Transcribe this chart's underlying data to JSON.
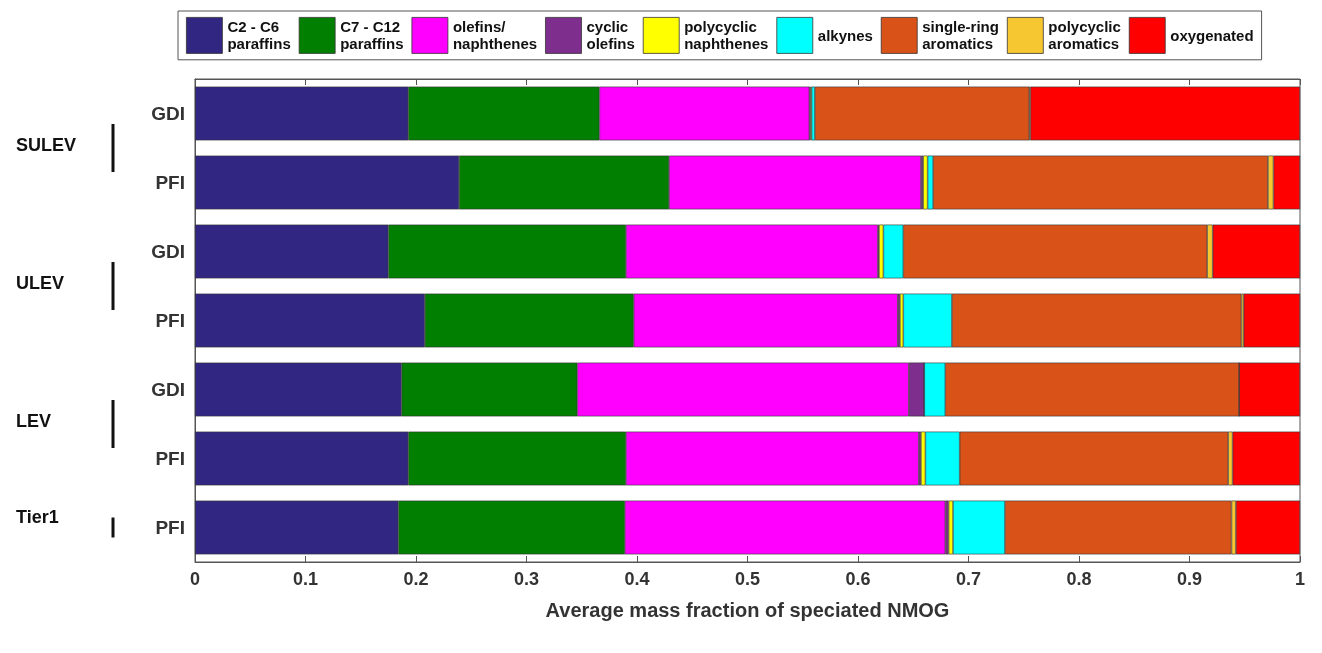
{
  "chart_data": {
    "type": "bar",
    "orientation": "horizontal",
    "stacked": true,
    "xlabel": "Average mass fraction of speciated NMOG",
    "categories": [
      "GDI",
      "PFI",
      "GDI",
      "PFI",
      "GDI",
      "PFI",
      "PFI"
    ],
    "annotations": [
      "SULEV",
      "ULEV",
      "LEV",
      "Tier1"
    ],
    "xlim": [
      0,
      1
    ],
    "xticks": [
      0,
      0.1,
      0.2,
      0.3,
      0.4,
      0.5,
      0.6,
      0.7,
      0.8,
      0.9,
      1
    ],
    "grid": false,
    "legend": "top",
    "series": [
      {
        "name": "C2 - C6\nparaffins",
        "color": "#312783",
        "values": [
          0.193,
          0.239,
          0.175,
          0.208,
          0.187,
          0.193,
          0.184
        ]
      },
      {
        "name": "C7 - C12\nparaffins",
        "color": "#007f00",
        "values": [
          0.173,
          0.19,
          0.215,
          0.189,
          0.159,
          0.197,
          0.205
        ]
      },
      {
        "name": "olefins/\nnaphthenes",
        "color": "#ff00ff",
        "values": [
          0.19,
          0.228,
          0.228,
          0.239,
          0.3,
          0.265,
          0.29
        ]
      },
      {
        "name": "cyclic\nolefins",
        "color": "#7e2f8e",
        "values": [
          0.001,
          0.002,
          0.001,
          0.002,
          0.014,
          0.002,
          0.003
        ]
      },
      {
        "name": "polycyclic\nnaphthenes",
        "color": "#ffff00",
        "values": [
          0.001,
          0.004,
          0.004,
          0.003,
          0,
          0.004,
          0.004
        ]
      },
      {
        "name": "alkynes",
        "color": "#00ffff",
        "values": [
          0.003,
          0.005,
          0.018,
          0.044,
          0.019,
          0.031,
          0.047
        ]
      },
      {
        "name": "single-ring\naromatics",
        "color": "#d95319",
        "values": [
          0.194,
          0.303,
          0.275,
          0.262,
          0.266,
          0.243,
          0.205
        ]
      },
      {
        "name": "polycyclic\naromatics",
        "color": "#f7c731",
        "values": [
          0.001,
          0.005,
          0.005,
          0.002,
          0,
          0.004,
          0.004
        ]
      },
      {
        "name": "oxygenated",
        "color": "#ff0000",
        "values": [
          0.244,
          0.024,
          0.079,
          0.051,
          0.055,
          0.061,
          0.058
        ]
      }
    ]
  }
}
